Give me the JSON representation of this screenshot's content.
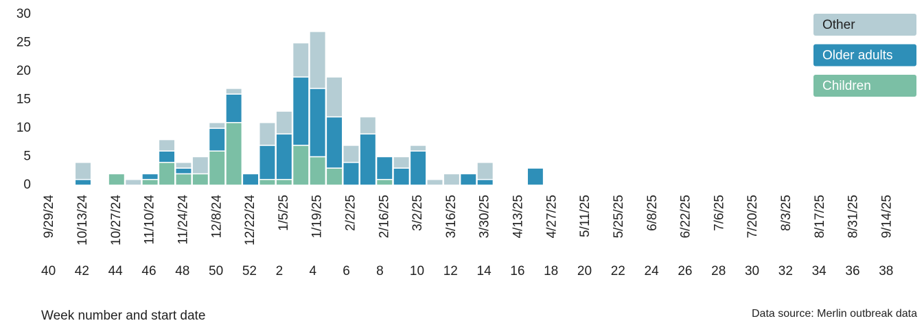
{
  "chart_data": {
    "type": "stacked_bar",
    "x_label": "Week number and start date",
    "source": "Data source: Merlin outbreak data",
    "categories": [
      "40",
      null,
      "42",
      null,
      "44",
      null,
      "46",
      null,
      "48",
      null,
      "50",
      null,
      "52",
      null,
      "2",
      null,
      "4",
      null,
      "6",
      null,
      "8",
      null,
      "10",
      null,
      "12",
      null,
      "14",
      null,
      "16",
      null,
      "18",
      null,
      "20",
      null,
      "22",
      null,
      "24",
      null,
      "26",
      null,
      "28",
      null,
      "30",
      null,
      "32",
      null,
      "34",
      null,
      "36",
      null,
      "38",
      null
    ],
    "dates": [
      "9/29/24",
      null,
      "10/13/24",
      null,
      "10/27/24",
      null,
      "11/10/24",
      null,
      "11/24/24",
      null,
      "12/8/24",
      null,
      "12/22/24",
      null,
      "1/5/25",
      null,
      "1/19/25",
      null,
      "2/2/25",
      null,
      "2/16/25",
      null,
      "3/2/25",
      null,
      "3/16/25",
      null,
      "3/30/25",
      null,
      "4/13/25",
      null,
      "4/27/25",
      null,
      "5/11/25",
      null,
      "5/25/25",
      null,
      "6/8/25",
      null,
      "6/22/25",
      null,
      "7/6/25",
      null,
      "7/20/25",
      null,
      "8/3/25",
      null,
      "8/17/25",
      null,
      "8/31/25",
      null,
      "9/14/25",
      null
    ],
    "series": [
      {
        "name": "Children",
        "color": "#7bbfa5",
        "values": [
          0,
          0,
          0,
          0,
          2,
          0,
          1,
          4,
          2,
          2,
          6,
          11,
          0,
          1,
          1,
          7,
          5,
          3,
          0,
          0,
          1,
          0,
          0,
          0,
          0,
          0,
          0,
          0,
          0,
          0,
          0,
          0,
          0,
          0,
          0,
          0,
          0,
          0,
          0,
          0,
          0,
          0,
          0,
          0,
          0,
          0,
          0,
          0,
          0,
          0,
          0,
          0
        ]
      },
      {
        "name": "Older adults",
        "color": "#2e8fb8",
        "values": [
          0,
          0,
          1,
          0,
          0,
          0,
          1,
          2,
          1,
          0,
          4,
          5,
          2,
          6,
          8,
          12,
          12,
          9,
          4,
          9,
          4,
          3,
          6,
          0,
          0,
          2,
          1,
          0,
          0,
          3,
          0,
          0,
          0,
          0,
          0,
          0,
          0,
          0,
          0,
          0,
          0,
          0,
          0,
          0,
          0,
          0,
          0,
          0,
          0,
          0,
          0,
          0
        ]
      },
      {
        "name": "Other",
        "color": "#b5cdd4",
        "values": [
          0,
          0,
          3,
          0,
          0,
          1,
          0,
          2,
          1,
          3,
          1,
          1,
          0,
          4,
          4,
          6,
          10,
          7,
          3,
          3,
          0,
          2,
          1,
          1,
          2,
          0,
          3,
          0,
          0,
          0,
          0,
          0,
          0,
          0,
          0,
          0,
          0,
          0,
          0,
          0,
          0,
          0,
          0,
          0,
          0,
          0,
          0,
          0,
          0,
          0,
          0,
          0
        ]
      }
    ],
    "ylim": [
      0,
      30
    ],
    "yticks": [
      0,
      5,
      10,
      15,
      20,
      25,
      30
    ]
  }
}
